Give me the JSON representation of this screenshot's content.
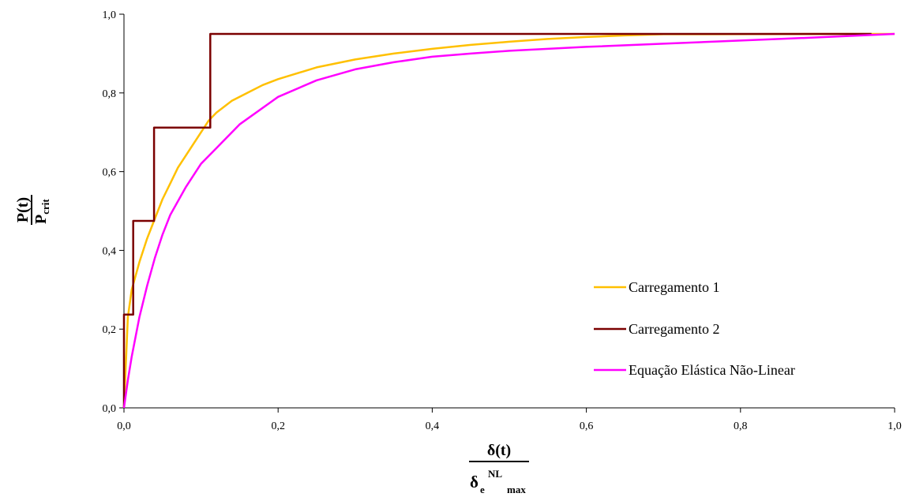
{
  "chart_data": {
    "type": "line",
    "xlim": [
      0,
      1
    ],
    "ylim": [
      0,
      1
    ],
    "grid": false,
    "legend_position": "bottom-right",
    "x_ticks": [
      "0,0",
      "0,2",
      "0,4",
      "0,6",
      "0,8",
      "1,0"
    ],
    "y_ticks": [
      "0,0",
      "0,2",
      "0,4",
      "0,6",
      "0,8",
      "1,0"
    ],
    "ylabel": {
      "num": "P(t)",
      "den_base": "P",
      "den_sub": "crit"
    },
    "xlabel": {
      "num": "δ(t)",
      "den_base": "δ",
      "den_sub": "e",
      "den_sup": "NL",
      "den_sub2": "max"
    },
    "series": [
      {
        "name": "Carregamento 1",
        "color": "#FFC000",
        "points": [
          [
            0,
            0
          ],
          [
            0.005,
            0.23
          ],
          [
            0.01,
            0.3
          ],
          [
            0.02,
            0.37
          ],
          [
            0.03,
            0.43
          ],
          [
            0.04,
            0.48
          ],
          [
            0.05,
            0.53
          ],
          [
            0.06,
            0.57
          ],
          [
            0.07,
            0.61
          ],
          [
            0.08,
            0.64
          ],
          [
            0.09,
            0.67
          ],
          [
            0.1,
            0.7
          ],
          [
            0.11,
            0.73
          ],
          [
            0.12,
            0.75
          ],
          [
            0.14,
            0.78
          ],
          [
            0.16,
            0.8
          ],
          [
            0.18,
            0.82
          ],
          [
            0.2,
            0.835
          ],
          [
            0.25,
            0.865
          ],
          [
            0.3,
            0.885
          ],
          [
            0.35,
            0.9
          ],
          [
            0.4,
            0.912
          ],
          [
            0.45,
            0.922
          ],
          [
            0.5,
            0.93
          ],
          [
            0.55,
            0.937
          ],
          [
            0.6,
            0.942
          ],
          [
            0.65,
            0.946
          ],
          [
            0.7,
            0.949
          ],
          [
            1.0,
            0.95
          ]
        ]
      },
      {
        "name": "Carregamento 2",
        "color": "#7B0000",
        "points": [
          [
            0,
            0
          ],
          [
            0,
            0.237
          ],
          [
            0.012,
            0.237
          ],
          [
            0.012,
            0.475
          ],
          [
            0.039,
            0.475
          ],
          [
            0.039,
            0.712
          ],
          [
            0.112,
            0.712
          ],
          [
            0.112,
            0.95
          ],
          [
            0.97,
            0.95
          ]
        ]
      },
      {
        "name": "Equação Elástica Não-Linear",
        "color": "#FF00FF",
        "points": [
          [
            0,
            0
          ],
          [
            0.005,
            0.07
          ],
          [
            0.01,
            0.13
          ],
          [
            0.02,
            0.23
          ],
          [
            0.03,
            0.31
          ],
          [
            0.04,
            0.38
          ],
          [
            0.05,
            0.44
          ],
          [
            0.06,
            0.49
          ],
          [
            0.08,
            0.56
          ],
          [
            0.1,
            0.62
          ],
          [
            0.12,
            0.66
          ],
          [
            0.15,
            0.72
          ],
          [
            0.2,
            0.79
          ],
          [
            0.25,
            0.832
          ],
          [
            0.3,
            0.86
          ],
          [
            0.35,
            0.878
          ],
          [
            0.4,
            0.892
          ],
          [
            0.45,
            0.9
          ],
          [
            0.5,
            0.907
          ],
          [
            0.6,
            0.917
          ],
          [
            0.7,
            0.925
          ],
          [
            0.8,
            0.933
          ],
          [
            0.9,
            0.941
          ],
          [
            1.0,
            0.95
          ]
        ]
      }
    ]
  }
}
